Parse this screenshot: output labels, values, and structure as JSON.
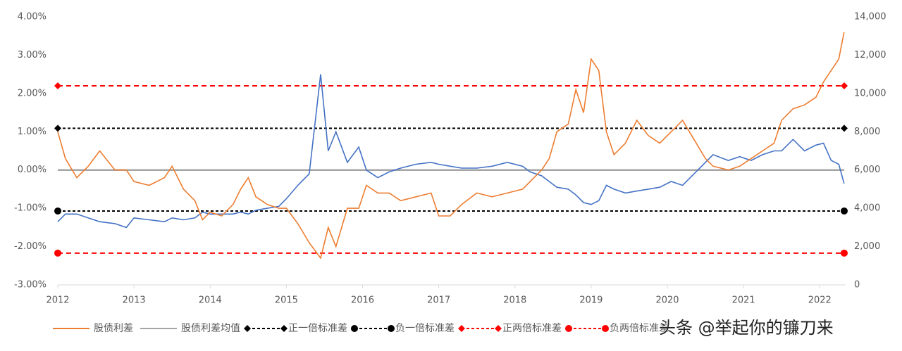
{
  "chart_data": {
    "type": "line",
    "x": [
      2012.0,
      2012.1,
      2012.25,
      2012.4,
      2012.55,
      2012.75,
      2012.9,
      2013.0,
      2013.2,
      2013.4,
      2013.5,
      2013.65,
      2013.8,
      2013.9,
      2014.0,
      2014.15,
      2014.3,
      2014.4,
      2014.5,
      2014.6,
      2014.75,
      2014.9,
      2015.0,
      2015.15,
      2015.3,
      2015.45,
      2015.55,
      2015.65,
      2015.8,
      2015.95,
      2016.05,
      2016.2,
      2016.35,
      2016.5,
      2016.7,
      2016.9,
      2017.0,
      2017.15,
      2017.3,
      2017.5,
      2017.7,
      2017.9,
      2018.1,
      2018.2,
      2018.35,
      2018.45,
      2018.55,
      2018.7,
      2018.8,
      2018.9,
      2019.0,
      2019.1,
      2019.2,
      2019.3,
      2019.45,
      2019.6,
      2019.75,
      2019.9,
      2020.05,
      2020.2,
      2020.35,
      2020.5,
      2020.6,
      2020.8,
      2020.95,
      2021.1,
      2021.25,
      2021.4,
      2021.5,
      2021.65,
      2021.8,
      2021.95,
      2022.05,
      2022.15,
      2022.25,
      2022.32
    ],
    "series": [
      {
        "name": "股债利差",
        "color": "#ed7d31",
        "axis": "y",
        "values": [
          1.0,
          0.3,
          -0.2,
          0.1,
          0.5,
          0.0,
          0.0,
          -0.3,
          -0.4,
          -0.2,
          0.1,
          -0.5,
          -0.8,
          -1.3,
          -1.1,
          -1.2,
          -0.9,
          -0.5,
          -0.2,
          -0.7,
          -0.9,
          -1.0,
          -1.0,
          -1.4,
          -1.9,
          -2.3,
          -1.5,
          -2.0,
          -1.0,
          -1.0,
          -0.4,
          -0.6,
          -0.6,
          -0.8,
          -0.7,
          -0.6,
          -1.2,
          -1.2,
          -0.9,
          -0.6,
          -0.7,
          -0.6,
          -0.5,
          -0.3,
          0.0,
          0.3,
          1.0,
          1.2,
          2.1,
          1.5,
          2.9,
          2.6,
          1.0,
          0.4,
          0.7,
          1.3,
          0.9,
          0.7,
          1.0,
          1.3,
          0.8,
          0.3,
          0.1,
          0.0,
          0.1,
          0.3,
          0.5,
          0.7,
          1.3,
          1.6,
          1.7,
          1.9,
          2.3,
          2.6,
          2.9,
          3.6
        ]
      },
      {
        "color": "#4472c4",
        "axis": "y2",
        "values": [
          3300,
          3700,
          3700,
          3500,
          3300,
          3200,
          3000,
          3500,
          3400,
          3300,
          3500,
          3400,
          3500,
          3800,
          3700,
          3700,
          3700,
          3800,
          3700,
          3900,
          4000,
          4100,
          4500,
          5200,
          5800,
          11000,
          7000,
          8000,
          6400,
          7200,
          6000,
          5600,
          5900,
          6100,
          6300,
          6400,
          6300,
          6200,
          6100,
          6100,
          6200,
          6400,
          6200,
          5900,
          5700,
          5400,
          5100,
          5000,
          4700,
          4300,
          4200,
          4400,
          5200,
          5000,
          4800,
          4900,
          5000,
          5100,
          5400,
          5200,
          5800,
          6400,
          6800,
          6500,
          6700,
          6500,
          6800,
          7000,
          7000,
          7600,
          7000,
          7300,
          7400,
          6500,
          6300,
          5300
        ]
      }
    ],
    "reference_lines": [
      {
        "name": "股债利差均值",
        "value": 0,
        "color": "#a5a5a5",
        "dash": false,
        "marker": "none"
      },
      {
        "name": "正一倍标准差",
        "value": 1.09,
        "color": "#000000",
        "dash": true,
        "marker": "diamond"
      },
      {
        "name": "负一倍标准差",
        "value": -1.07,
        "color": "#000000",
        "dash": true,
        "marker": "circle"
      },
      {
        "name": "正两倍标准差",
        "value": 2.2,
        "color": "#ff0000",
        "dash": true,
        "marker": "diamond"
      },
      {
        "name": "负两倍标准差",
        "value": -2.17,
        "color": "#ff0000",
        "dash": true,
        "marker": "circle"
      }
    ],
    "xlim": [
      2012,
      2022.34
    ],
    "xticks": [
      2012,
      2013,
      2014,
      2015,
      2016,
      2017,
      2018,
      2019,
      2020,
      2021,
      2022
    ],
    "ylim": [
      -3,
      4
    ],
    "yticks": [
      {
        "value": -3,
        "label": "-3.00%"
      },
      {
        "value": -2,
        "label": "-2.00%"
      },
      {
        "value": -1,
        "label": "-1.00%"
      },
      {
        "value": 0,
        "label": "0.00%"
      },
      {
        "value": 1,
        "label": "1.00%"
      },
      {
        "value": 2,
        "label": "2.00%"
      },
      {
        "value": 3,
        "label": "3.00%"
      },
      {
        "value": 4,
        "label": "4.00%"
      }
    ],
    "y2lim": [
      0,
      14000
    ],
    "y2ticks": [
      0,
      {
        "value": 2000,
        "label": "2,000"
      },
      {
        "value": 4000,
        "label": "4,000"
      },
      {
        "value": 6000,
        "label": "6,000"
      },
      {
        "value": 8000,
        "label": "8,000"
      },
      {
        "value": 10000,
        "label": "10,000"
      },
      {
        "value": 12000,
        "label": "12,000"
      },
      {
        "value": 14000,
        "label": "14,000"
      }
    ],
    "legend": "bottom",
    "watermark": "头条 @举起你的镰刀来"
  }
}
